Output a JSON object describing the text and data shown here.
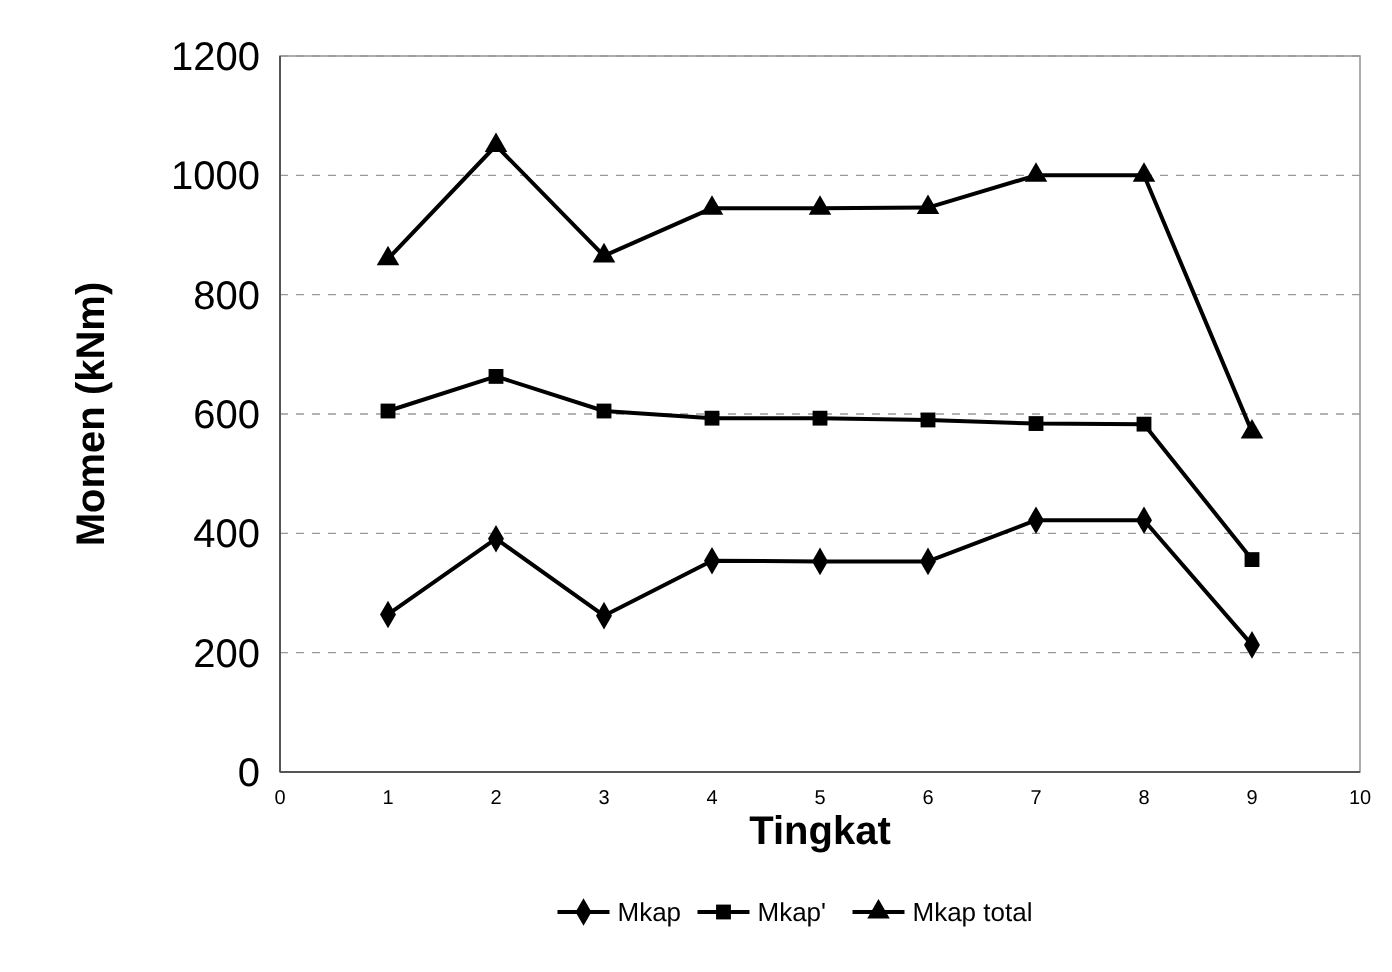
{
  "chart_data": {
    "type": "line",
    "xlabel": "Tingkat",
    "ylabel": "Momen (kNm)",
    "x": [
      1,
      2,
      3,
      4,
      5,
      6,
      7,
      8,
      9
    ],
    "series": [
      {
        "name": "Mkap",
        "color": "#000000",
        "marker": "diamond",
        "values": [
          264,
          391,
          262,
          354,
          353,
          353,
          422,
          422,
          213
        ]
      },
      {
        "name": "Mkap'",
        "color": "#000000",
        "marker": "square",
        "values": [
          605,
          663,
          605,
          593,
          593,
          590,
          584,
          583,
          356
        ]
      },
      {
        "name": "Mkap total",
        "color": "#000000",
        "marker": "triangle",
        "values": [
          860,
          1050,
          865,
          945,
          945,
          946,
          1000,
          1000,
          570
        ]
      }
    ],
    "xlim": [
      0,
      10
    ],
    "xticks": [
      0,
      1,
      2,
      3,
      4,
      5,
      6,
      7,
      8,
      9,
      10
    ],
    "ylim": [
      0,
      1200
    ],
    "yticks": [
      0,
      200,
      400,
      600,
      800,
      1000,
      1200
    ],
    "grid": "y",
    "legend": "bottom",
    "line_style": "solid"
  }
}
